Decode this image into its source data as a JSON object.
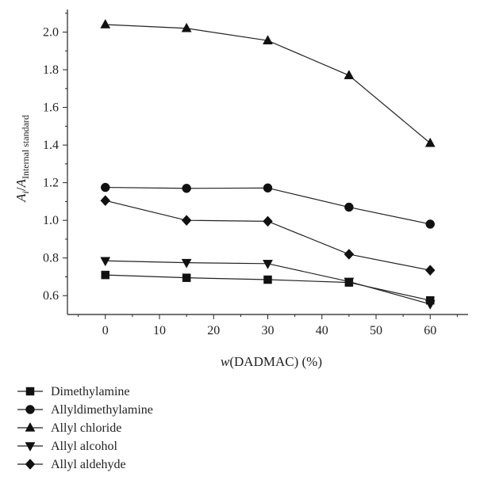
{
  "chart_data": {
    "type": "line",
    "title": "",
    "xlabel": {
      "prefix": "w",
      "text": "(DADMAC) (%)"
    },
    "ylabel": {
      "main": "A",
      "sub1": "i",
      "sep": "/",
      "main2": "A",
      "sub2": "Internal standard"
    },
    "x": [
      0,
      15,
      30,
      45,
      60
    ],
    "xlim": [
      -7,
      67
    ],
    "ylim": [
      0.5,
      2.12
    ],
    "x_ticks": [
      0,
      10,
      20,
      30,
      40,
      50,
      60
    ],
    "y_ticks": [
      "0.6",
      "0.8",
      "1.0",
      "1.2",
      "1.4",
      "1.6",
      "1.8",
      "2.0"
    ],
    "grid": false,
    "legend_position": "bottom-left",
    "series": [
      {
        "name": "Dimethylamine",
        "marker": "square",
        "values": [
          0.71,
          0.695,
          0.685,
          0.67,
          0.575
        ]
      },
      {
        "name": "Allyldimethylamine",
        "marker": "circle",
        "values": [
          1.175,
          1.17,
          1.172,
          1.07,
          0.98
        ]
      },
      {
        "name": "Allyl chloride",
        "marker": "triangle-up",
        "values": [
          2.04,
          2.02,
          1.955,
          1.77,
          1.41
        ]
      },
      {
        "name": "Allyl alcohol",
        "marker": "triangle-down",
        "values": [
          0.785,
          0.775,
          0.77,
          0.675,
          0.555
        ]
      },
      {
        "name": "Allyl aldehyde",
        "marker": "diamond",
        "values": [
          1.105,
          1.0,
          0.995,
          0.82,
          0.735
        ]
      }
    ]
  }
}
